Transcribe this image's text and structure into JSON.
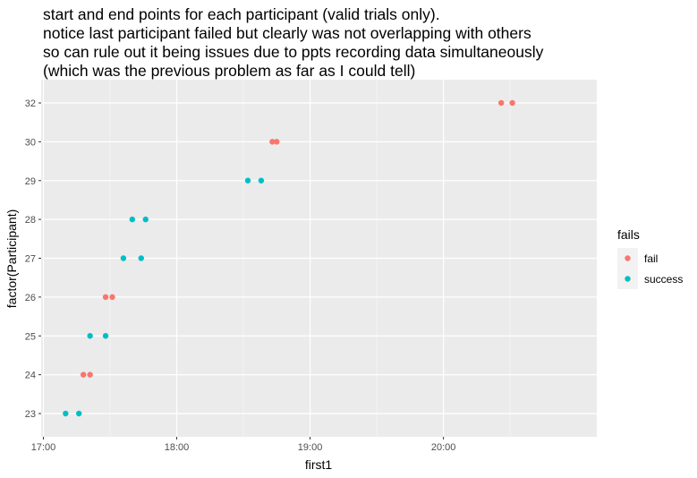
{
  "chart_data": {
    "type": "scatter",
    "title_lines": [
      "start and end points for each participant (valid trials only).",
      "notice last participant failed but clearly was not overlapping with others",
      "so can rule out it being issues due to ppts recording data simultaneously",
      "(which was the previous problem as far as I could tell)"
    ],
    "xlabel": "first1",
    "ylabel": "factor(Participant)",
    "x_ticks": [
      "17:00",
      "18:00",
      "19:00",
      "20:00"
    ],
    "y_categories": [
      "23",
      "24",
      "25",
      "26",
      "27",
      "28",
      "29",
      "30",
      "32"
    ],
    "x_axis_scale": "time of day",
    "xlim": [
      "16:59",
      "21:09"
    ],
    "grid": true,
    "background": "#ebebeb",
    "legend": {
      "title": "fails",
      "placement": "right",
      "entries": [
        {
          "label": "fail",
          "color": "#F8766D"
        },
        {
          "label": "success",
          "color": "#00BFC4"
        }
      ]
    },
    "series": [
      {
        "name": "fail",
        "color": "#F8766D",
        "points": [
          {
            "x": "17:18",
            "y": "24"
          },
          {
            "x": "17:21",
            "y": "24"
          },
          {
            "x": "17:28",
            "y": "26"
          },
          {
            "x": "17:31",
            "y": "26"
          },
          {
            "x": "18:43",
            "y": "30"
          },
          {
            "x": "18:45",
            "y": "30"
          },
          {
            "x": "20:26",
            "y": "32"
          },
          {
            "x": "20:31",
            "y": "32"
          }
        ]
      },
      {
        "name": "success",
        "color": "#00BFC4",
        "points": [
          {
            "x": "17:10",
            "y": "23"
          },
          {
            "x": "17:16",
            "y": "23"
          },
          {
            "x": "17:21",
            "y": "25"
          },
          {
            "x": "17:28",
            "y": "25"
          },
          {
            "x": "17:36",
            "y": "27"
          },
          {
            "x": "17:44",
            "y": "27"
          },
          {
            "x": "17:40",
            "y": "28"
          },
          {
            "x": "17:46",
            "y": "28"
          },
          {
            "x": "18:32",
            "y": "29"
          },
          {
            "x": "18:38",
            "y": "29"
          }
        ]
      }
    ]
  }
}
